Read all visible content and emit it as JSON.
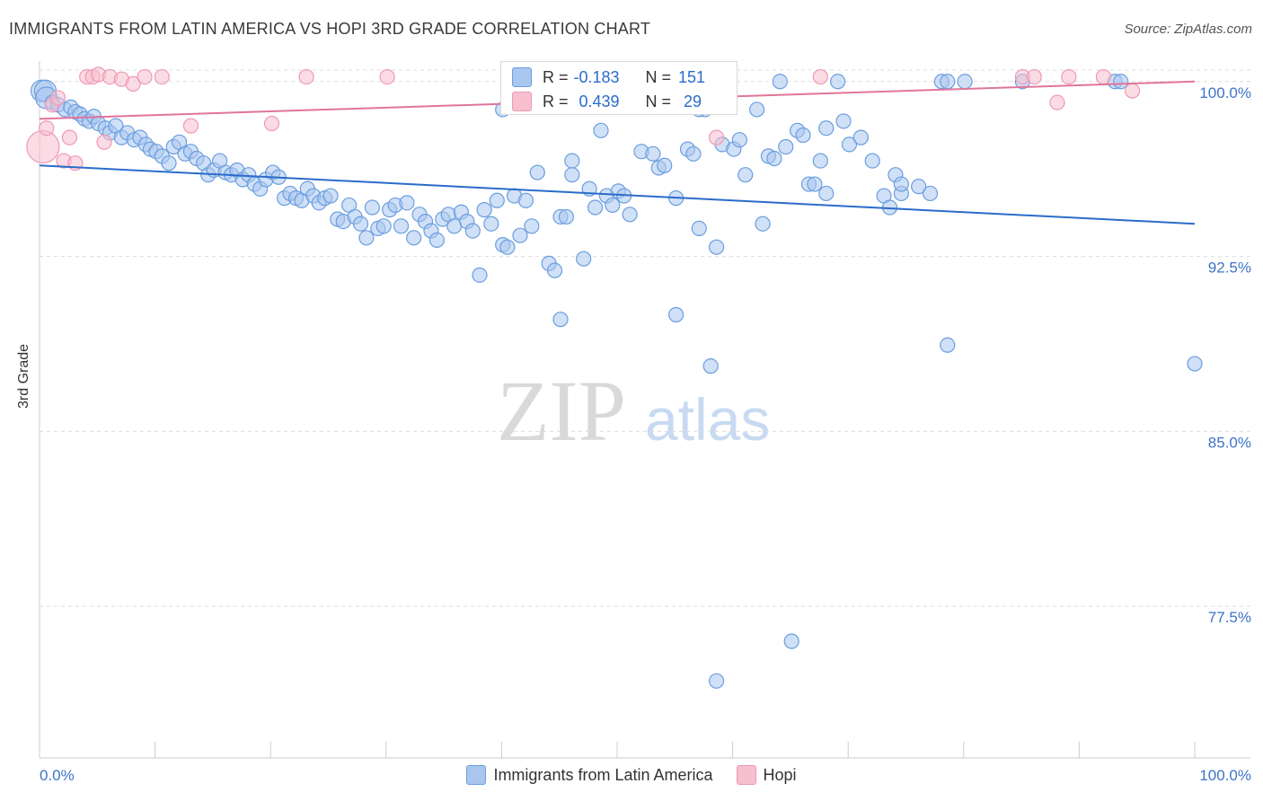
{
  "title": "IMMIGRANTS FROM LATIN AMERICA VS HOPI 3RD GRADE CORRELATION CHART",
  "source": "Source: ZipAtlas.com",
  "watermark": {
    "zip": "ZIP",
    "atlas": "atlas"
  },
  "colors": {
    "blue_fill": "#a9c6ee",
    "blue_stroke": "#6a9ee0",
    "blue_line": "#2a6cc9",
    "pink_fill": "#f7bfd0",
    "pink_stroke": "#ee99b4",
    "pink_line": "#e0759a",
    "axis_text": "#3d74c8",
    "grid": "#dddddd"
  },
  "stats": [
    {
      "r_label": "R =",
      "r_value": "-0.183",
      "n_label": "N =",
      "n_value": "151",
      "color": "#a9c6ee"
    },
    {
      "r_label": "R =",
      "r_value": "0.439",
      "n_label": "N =",
      "n_value": "29",
      "color": "#f7bfd0"
    }
  ],
  "chart_data": {
    "type": "scatter",
    "title": "IMMIGRANTS FROM LATIN AMERICA VS HOPI 3RD GRADE CORRELATION CHART",
    "xlabel": "",
    "ylabel": "3rd Grade",
    "xlim": [
      0,
      100
    ],
    "ylim": [
      71.0,
      100.8
    ],
    "x_tick_labels": [
      "0.0%",
      "100.0%"
    ],
    "y_ticks": [
      100.0,
      92.5,
      85.0,
      77.5
    ],
    "y_tick_labels": [
      "100.0%",
      "92.5%",
      "85.0%",
      "77.5%"
    ],
    "grid": true,
    "legend_position": "bottom",
    "series": [
      {
        "name": "Immigrants from Latin America",
        "color": "#a9c6ee",
        "trend": {
          "x": [
            0,
            100
          ],
          "y": [
            96.4,
            93.9
          ]
        },
        "points": [
          [
            0.2,
            99.6
          ],
          [
            0.5,
            99.6
          ],
          [
            0.6,
            99.3
          ],
          [
            1.1,
            99.1
          ],
          [
            1.6,
            99.0
          ],
          [
            2.2,
            98.8
          ],
          [
            2.7,
            98.9
          ],
          [
            3.1,
            98.7
          ],
          [
            3.5,
            98.6
          ],
          [
            3.9,
            98.4
          ],
          [
            4.3,
            98.3
          ],
          [
            4.7,
            98.5
          ],
          [
            5.1,
            98.2
          ],
          [
            5.7,
            98.0
          ],
          [
            6.1,
            97.8
          ],
          [
            6.6,
            98.1
          ],
          [
            7.1,
            97.6
          ],
          [
            7.6,
            97.8
          ],
          [
            8.2,
            97.5
          ],
          [
            8.7,
            97.6
          ],
          [
            9.2,
            97.3
          ],
          [
            9.6,
            97.1
          ],
          [
            10.1,
            97.0
          ],
          [
            10.6,
            96.8
          ],
          [
            11.2,
            96.5
          ],
          [
            11.6,
            97.2
          ],
          [
            12.1,
            97.4
          ],
          [
            12.6,
            96.9
          ],
          [
            13.1,
            97.0
          ],
          [
            13.6,
            96.7
          ],
          [
            14.2,
            96.5
          ],
          [
            14.6,
            96.0
          ],
          [
            15.1,
            96.2
          ],
          [
            15.6,
            96.6
          ],
          [
            16.1,
            96.1
          ],
          [
            16.6,
            96.0
          ],
          [
            17.1,
            96.2
          ],
          [
            17.6,
            95.8
          ],
          [
            18.1,
            96.0
          ],
          [
            18.6,
            95.6
          ],
          [
            19.1,
            95.4
          ],
          [
            19.6,
            95.8
          ],
          [
            20.2,
            96.1
          ],
          [
            20.7,
            95.9
          ],
          [
            21.2,
            95.0
          ],
          [
            21.7,
            95.2
          ],
          [
            22.2,
            95.0
          ],
          [
            22.7,
            94.9
          ],
          [
            23.2,
            95.4
          ],
          [
            23.7,
            95.1
          ],
          [
            24.2,
            94.8
          ],
          [
            24.7,
            95.0
          ],
          [
            25.2,
            95.1
          ],
          [
            25.8,
            94.1
          ],
          [
            26.3,
            94.0
          ],
          [
            26.8,
            94.7
          ],
          [
            27.3,
            94.2
          ],
          [
            27.8,
            93.9
          ],
          [
            28.3,
            93.3
          ],
          [
            28.8,
            94.6
          ],
          [
            29.3,
            93.7
          ],
          [
            29.8,
            93.8
          ],
          [
            30.3,
            94.5
          ],
          [
            30.8,
            94.7
          ],
          [
            31.3,
            93.8
          ],
          [
            31.8,
            94.8
          ],
          [
            32.4,
            93.3
          ],
          [
            32.9,
            94.3
          ],
          [
            33.4,
            94.0
          ],
          [
            33.9,
            93.6
          ],
          [
            34.4,
            93.2
          ],
          [
            34.9,
            94.1
          ],
          [
            35.4,
            94.3
          ],
          [
            35.9,
            93.8
          ],
          [
            36.5,
            94.4
          ],
          [
            37.0,
            94.0
          ],
          [
            37.5,
            93.6
          ],
          [
            38.1,
            91.7
          ],
          [
            38.5,
            94.5
          ],
          [
            39.1,
            93.9
          ],
          [
            39.6,
            94.9
          ],
          [
            40.1,
            93.0
          ],
          [
            40.5,
            92.9
          ],
          [
            41.1,
            95.1
          ],
          [
            41.6,
            93.4
          ],
          [
            42.1,
            94.9
          ],
          [
            42.6,
            93.8
          ],
          [
            43.1,
            96.1
          ],
          [
            44.1,
            92.2
          ],
          [
            44.6,
            91.9
          ],
          [
            45.1,
            94.2
          ],
          [
            45.6,
            94.2
          ],
          [
            46.1,
            96.6
          ],
          [
            46.1,
            96.0
          ],
          [
            47.1,
            92.4
          ],
          [
            47.6,
            95.4
          ],
          [
            48.1,
            94.6
          ],
          [
            48.6,
            97.9
          ],
          [
            49.1,
            95.1
          ],
          [
            49.6,
            94.7
          ],
          [
            50.1,
            95.3
          ],
          [
            50.6,
            95.1
          ],
          [
            51.1,
            94.3
          ],
          [
            52.1,
            97.0
          ],
          [
            53.1,
            96.9
          ],
          [
            53.6,
            96.3
          ],
          [
            54.1,
            96.4
          ],
          [
            55.1,
            95.0
          ],
          [
            56.1,
            97.1
          ],
          [
            56.6,
            96.9
          ],
          [
            57.1,
            93.7
          ],
          [
            57.6,
            98.8
          ],
          [
            58.6,
            92.9
          ],
          [
            59.1,
            97.3
          ],
          [
            60.1,
            97.1
          ],
          [
            60.6,
            97.5
          ],
          [
            61.1,
            96.0
          ],
          [
            62.6,
            93.9
          ],
          [
            63.1,
            96.8
          ],
          [
            63.6,
            96.7
          ],
          [
            64.6,
            97.2
          ],
          [
            65.6,
            97.9
          ],
          [
            66.1,
            97.7
          ],
          [
            66.6,
            95.6
          ],
          [
            67.1,
            95.6
          ],
          [
            67.6,
            96.6
          ],
          [
            68.1,
            98.0
          ],
          [
            69.6,
            98.3
          ],
          [
            70.1,
            97.3
          ],
          [
            71.1,
            97.6
          ],
          [
            72.1,
            96.6
          ],
          [
            73.1,
            95.1
          ],
          [
            73.6,
            94.6
          ],
          [
            74.1,
            96.0
          ],
          [
            74.6,
            95.2
          ],
          [
            76.1,
            95.5
          ],
          [
            40.1,
            98.8
          ],
          [
            57.1,
            98.8
          ],
          [
            62.1,
            98.8
          ],
          [
            64.1,
            100.0
          ],
          [
            69.1,
            100.0
          ],
          [
            78.1,
            100.0
          ],
          [
            78.6,
            100.0
          ],
          [
            80.1,
            100.0
          ],
          [
            85.1,
            100.0
          ],
          [
            93.1,
            100.0
          ],
          [
            93.6,
            100.0
          ],
          [
            45.1,
            89.8
          ],
          [
            55.1,
            90.0
          ],
          [
            58.1,
            87.8
          ],
          [
            78.6,
            88.7
          ],
          [
            100.0,
            87.9
          ],
          [
            65.1,
            76.0
          ],
          [
            58.6,
            74.3
          ],
          [
            77.1,
            95.2
          ],
          [
            68.1,
            95.2
          ],
          [
            74.6,
            95.6
          ]
        ]
      },
      {
        "name": "Hopi",
        "color": "#f7bfd0",
        "trend": {
          "x": [
            0,
            100
          ],
          "y": [
            98.4,
            100.0
          ]
        },
        "points": [
          [
            0.3,
            97.2
          ],
          [
            0.6,
            98.0
          ],
          [
            1.1,
            99.0
          ],
          [
            1.6,
            99.3
          ],
          [
            2.1,
            96.6
          ],
          [
            2.6,
            97.6
          ],
          [
            3.1,
            96.5
          ],
          [
            4.1,
            100.2
          ],
          [
            4.6,
            100.2
          ],
          [
            5.1,
            100.3
          ],
          [
            5.6,
            97.4
          ],
          [
            6.1,
            100.2
          ],
          [
            7.1,
            100.1
          ],
          [
            8.1,
            99.9
          ],
          [
            9.1,
            100.2
          ],
          [
            10.6,
            100.2
          ],
          [
            13.1,
            98.1
          ],
          [
            20.1,
            98.2
          ],
          [
            23.1,
            100.2
          ],
          [
            30.1,
            100.2
          ],
          [
            54.1,
            100.0
          ],
          [
            58.6,
            97.6
          ],
          [
            67.6,
            100.2
          ],
          [
            85.1,
            100.2
          ],
          [
            86.1,
            100.2
          ],
          [
            88.1,
            99.1
          ],
          [
            89.1,
            100.2
          ],
          [
            92.1,
            100.2
          ],
          [
            94.6,
            99.6
          ]
        ]
      }
    ]
  }
}
